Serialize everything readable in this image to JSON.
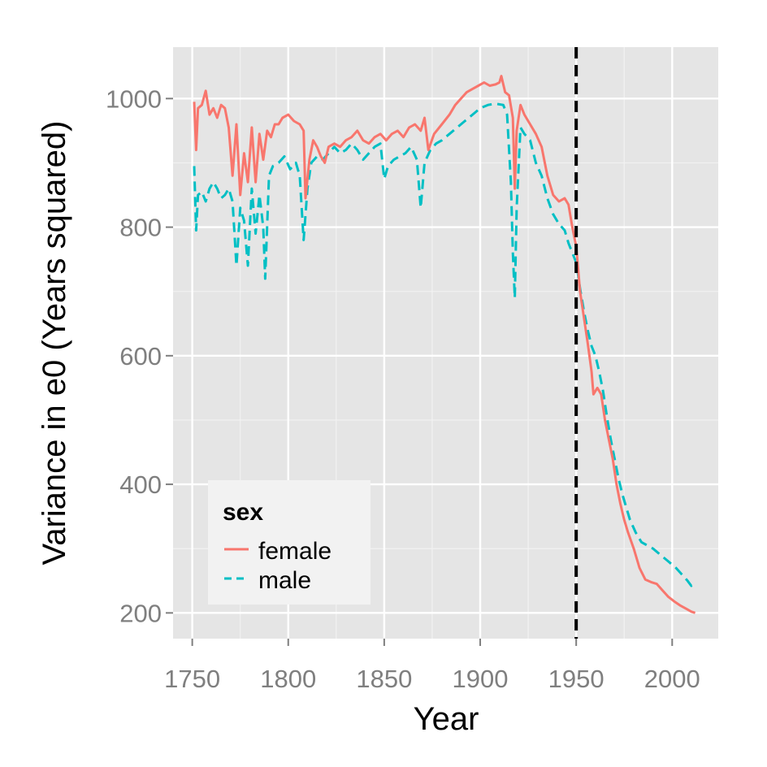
{
  "chart_data": {
    "type": "line",
    "title": "",
    "xlabel": "Year",
    "ylabel": "Variance in e0 (Years squared)",
    "xlim": [
      1740,
      2024
    ],
    "ylim": [
      160,
      1080
    ],
    "x_ticks": [
      1750,
      1800,
      1850,
      1900,
      1950,
      2000
    ],
    "y_ticks": [
      200,
      400,
      600,
      800,
      1000
    ],
    "grid": true,
    "legend": {
      "title": "sex",
      "position": "bottom-left",
      "inside": true
    },
    "reference_line": {
      "x": 1950,
      "style": "dashed",
      "color": "#000000"
    },
    "series": [
      {
        "name": "female",
        "color": "#F8766D",
        "dash": "solid",
        "points": [
          [
            1751,
            995
          ],
          [
            1752,
            920
          ],
          [
            1753,
            985
          ],
          [
            1755,
            990
          ],
          [
            1757,
            1012
          ],
          [
            1759,
            975
          ],
          [
            1761,
            985
          ],
          [
            1763,
            970
          ],
          [
            1765,
            990
          ],
          [
            1767,
            985
          ],
          [
            1769,
            955
          ],
          [
            1771,
            880
          ],
          [
            1773,
            960
          ],
          [
            1775,
            850
          ],
          [
            1777,
            915
          ],
          [
            1779,
            870
          ],
          [
            1781,
            955
          ],
          [
            1783,
            870
          ],
          [
            1785,
            945
          ],
          [
            1787,
            905
          ],
          [
            1789,
            950
          ],
          [
            1791,
            940
          ],
          [
            1793,
            960
          ],
          [
            1795,
            960
          ],
          [
            1797,
            970
          ],
          [
            1800,
            975
          ],
          [
            1803,
            965
          ],
          [
            1806,
            960
          ],
          [
            1808,
            950
          ],
          [
            1809,
            845
          ],
          [
            1811,
            905
          ],
          [
            1813,
            935
          ],
          [
            1815,
            925
          ],
          [
            1817,
            910
          ],
          [
            1819,
            900
          ],
          [
            1821,
            925
          ],
          [
            1824,
            930
          ],
          [
            1827,
            925
          ],
          [
            1830,
            935
          ],
          [
            1833,
            940
          ],
          [
            1836,
            950
          ],
          [
            1839,
            935
          ],
          [
            1842,
            930
          ],
          [
            1845,
            940
          ],
          [
            1848,
            945
          ],
          [
            1851,
            935
          ],
          [
            1854,
            945
          ],
          [
            1857,
            950
          ],
          [
            1860,
            940
          ],
          [
            1863,
            955
          ],
          [
            1866,
            960
          ],
          [
            1869,
            950
          ],
          [
            1871,
            970
          ],
          [
            1873,
            920
          ],
          [
            1876,
            945
          ],
          [
            1880,
            960
          ],
          [
            1884,
            975
          ],
          [
            1887,
            990
          ],
          [
            1890,
            1000
          ],
          [
            1893,
            1010
          ],
          [
            1896,
            1015
          ],
          [
            1899,
            1020
          ],
          [
            1902,
            1025
          ],
          [
            1905,
            1020
          ],
          [
            1908,
            1022
          ],
          [
            1910,
            1025
          ],
          [
            1911,
            1035
          ],
          [
            1913,
            1010
          ],
          [
            1915,
            1005
          ],
          [
            1917,
            970
          ],
          [
            1918,
            860
          ],
          [
            1919,
            950
          ],
          [
            1921,
            990
          ],
          [
            1923,
            975
          ],
          [
            1926,
            960
          ],
          [
            1929,
            945
          ],
          [
            1932,
            925
          ],
          [
            1935,
            880
          ],
          [
            1938,
            850
          ],
          [
            1941,
            840
          ],
          [
            1944,
            845
          ],
          [
            1946,
            835
          ],
          [
            1948,
            800
          ],
          [
            1950,
            770
          ],
          [
            1952,
            700
          ],
          [
            1954,
            660
          ],
          [
            1956,
            620
          ],
          [
            1958,
            575
          ],
          [
            1959,
            540
          ],
          [
            1961,
            550
          ],
          [
            1963,
            540
          ],
          [
            1965,
            500
          ],
          [
            1967,
            470
          ],
          [
            1969,
            440
          ],
          [
            1971,
            400
          ],
          [
            1973,
            370
          ],
          [
            1975,
            345
          ],
          [
            1977,
            325
          ],
          [
            1980,
            300
          ],
          [
            1983,
            270
          ],
          [
            1986,
            252
          ],
          [
            1989,
            248
          ],
          [
            1992,
            245
          ],
          [
            1995,
            235
          ],
          [
            1998,
            225
          ],
          [
            2001,
            218
          ],
          [
            2004,
            212
          ],
          [
            2007,
            207
          ],
          [
            2010,
            202
          ],
          [
            2012,
            200
          ]
        ]
      },
      {
        "name": "male",
        "color": "#00BFC4",
        "dash": "dashed",
        "points": [
          [
            1751,
            895
          ],
          [
            1752,
            795
          ],
          [
            1753,
            850
          ],
          [
            1755,
            855
          ],
          [
            1757,
            840
          ],
          [
            1759,
            860
          ],
          [
            1761,
            870
          ],
          [
            1763,
            860
          ],
          [
            1765,
            845
          ],
          [
            1767,
            850
          ],
          [
            1769,
            860
          ],
          [
            1771,
            840
          ],
          [
            1773,
            740
          ],
          [
            1775,
            830
          ],
          [
            1777,
            810
          ],
          [
            1779,
            740
          ],
          [
            1781,
            860
          ],
          [
            1783,
            790
          ],
          [
            1785,
            850
          ],
          [
            1787,
            800
          ],
          [
            1788,
            720
          ],
          [
            1790,
            880
          ],
          [
            1792,
            895
          ],
          [
            1795,
            900
          ],
          [
            1798,
            910
          ],
          [
            1801,
            890
          ],
          [
            1804,
            900
          ],
          [
            1806,
            880
          ],
          [
            1808,
            780
          ],
          [
            1810,
            860
          ],
          [
            1812,
            900
          ],
          [
            1815,
            910
          ],
          [
            1818,
            905
          ],
          [
            1821,
            915
          ],
          [
            1824,
            925
          ],
          [
            1827,
            915
          ],
          [
            1830,
            920
          ],
          [
            1833,
            930
          ],
          [
            1836,
            920
          ],
          [
            1839,
            905
          ],
          [
            1842,
            915
          ],
          [
            1845,
            925
          ],
          [
            1848,
            930
          ],
          [
            1850,
            875
          ],
          [
            1852,
            895
          ],
          [
            1855,
            905
          ],
          [
            1858,
            910
          ],
          [
            1861,
            915
          ],
          [
            1864,
            925
          ],
          [
            1867,
            905
          ],
          [
            1869,
            830
          ],
          [
            1871,
            900
          ],
          [
            1874,
            920
          ],
          [
            1877,
            930
          ],
          [
            1880,
            935
          ],
          [
            1884,
            945
          ],
          [
            1888,
            955
          ],
          [
            1892,
            965
          ],
          [
            1896,
            975
          ],
          [
            1900,
            985
          ],
          [
            1904,
            990
          ],
          [
            1908,
            992
          ],
          [
            1912,
            990
          ],
          [
            1914,
            975
          ],
          [
            1916,
            870
          ],
          [
            1917,
            760
          ],
          [
            1918,
            690
          ],
          [
            1919,
            830
          ],
          [
            1921,
            955
          ],
          [
            1923,
            945
          ],
          [
            1926,
            935
          ],
          [
            1929,
            900
          ],
          [
            1932,
            880
          ],
          [
            1935,
            845
          ],
          [
            1938,
            820
          ],
          [
            1941,
            805
          ],
          [
            1944,
            795
          ],
          [
            1946,
            775
          ],
          [
            1948,
            760
          ],
          [
            1950,
            745
          ],
          [
            1952,
            705
          ],
          [
            1954,
            670
          ],
          [
            1956,
            640
          ],
          [
            1958,
            615
          ],
          [
            1960,
            600
          ],
          [
            1962,
            575
          ],
          [
            1964,
            545
          ],
          [
            1966,
            505
          ],
          [
            1968,
            470
          ],
          [
            1970,
            440
          ],
          [
            1972,
            410
          ],
          [
            1974,
            385
          ],
          [
            1976,
            365
          ],
          [
            1978,
            345
          ],
          [
            1981,
            325
          ],
          [
            1984,
            310
          ],
          [
            1987,
            305
          ],
          [
            1990,
            300
          ],
          [
            1994,
            290
          ],
          [
            1998,
            280
          ],
          [
            2002,
            270
          ],
          [
            2005,
            260
          ],
          [
            2008,
            250
          ],
          [
            2010,
            242
          ],
          [
            2012,
            245
          ]
        ]
      }
    ]
  }
}
